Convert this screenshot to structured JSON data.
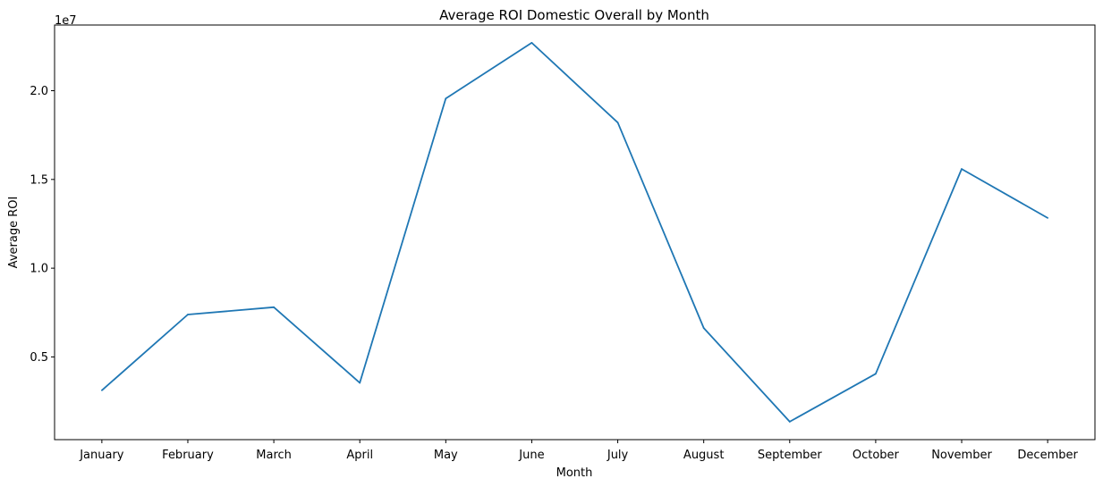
{
  "chart_data": {
    "type": "line",
    "title": "Average ROI Domestic Overall by Month",
    "xlabel": "Month",
    "ylabel": "Average ROI",
    "y_offset_text": "1e7",
    "categories": [
      "January",
      "February",
      "March",
      "April",
      "May",
      "June",
      "July",
      "August",
      "September",
      "October",
      "November",
      "December"
    ],
    "values": [
      3120000,
      7390000,
      7800000,
      3540000,
      19560000,
      22700000,
      18200000,
      6630000,
      1350000,
      4050000,
      15590000,
      12830000
    ],
    "ylim": [
      340000,
      23700000
    ],
    "yticks": [
      5000000,
      10000000,
      15000000,
      20000000
    ],
    "ytick_labels": [
      "0.5",
      "1.0",
      "1.5",
      "2.0"
    ],
    "grid": false,
    "line_color": "#1f77b4"
  }
}
